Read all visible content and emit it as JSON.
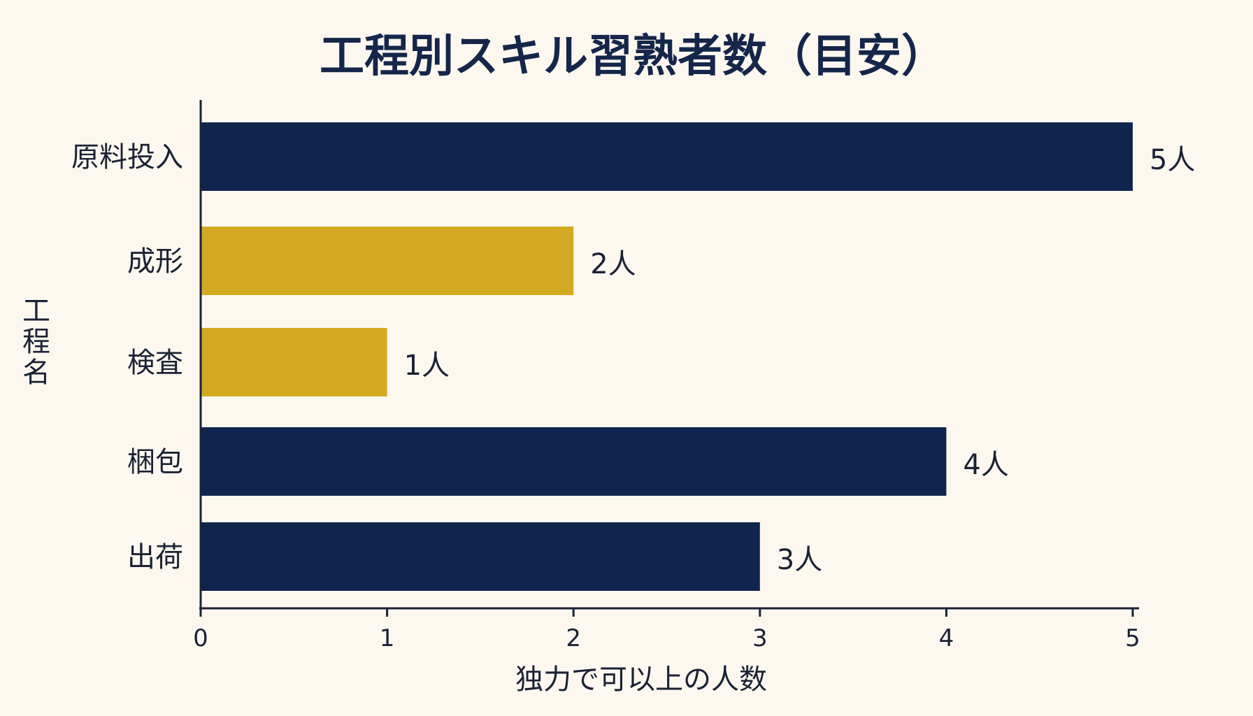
{
  "chart_data": {
    "type": "bar",
    "orientation": "horizontal",
    "title": "工程別スキル習熟者数（目安）",
    "xlabel": "独力で可以上の人数",
    "ylabel": "工程名",
    "categories": [
      "原料投入",
      "成形",
      "検査",
      "梱包",
      "出荷"
    ],
    "values": [
      5,
      2,
      1,
      4,
      3
    ],
    "data_labels": [
      "5人",
      "2人",
      "1人",
      "4人",
      "3人"
    ],
    "bar_colors": [
      "#10254d",
      "#d4a922",
      "#d4a922",
      "#10254d",
      "#10254d"
    ],
    "xlim": [
      0,
      5
    ],
    "xticks": [
      "0",
      "1",
      "2",
      "3",
      "4",
      "5"
    ],
    "grid": false,
    "legend": "none"
  }
}
